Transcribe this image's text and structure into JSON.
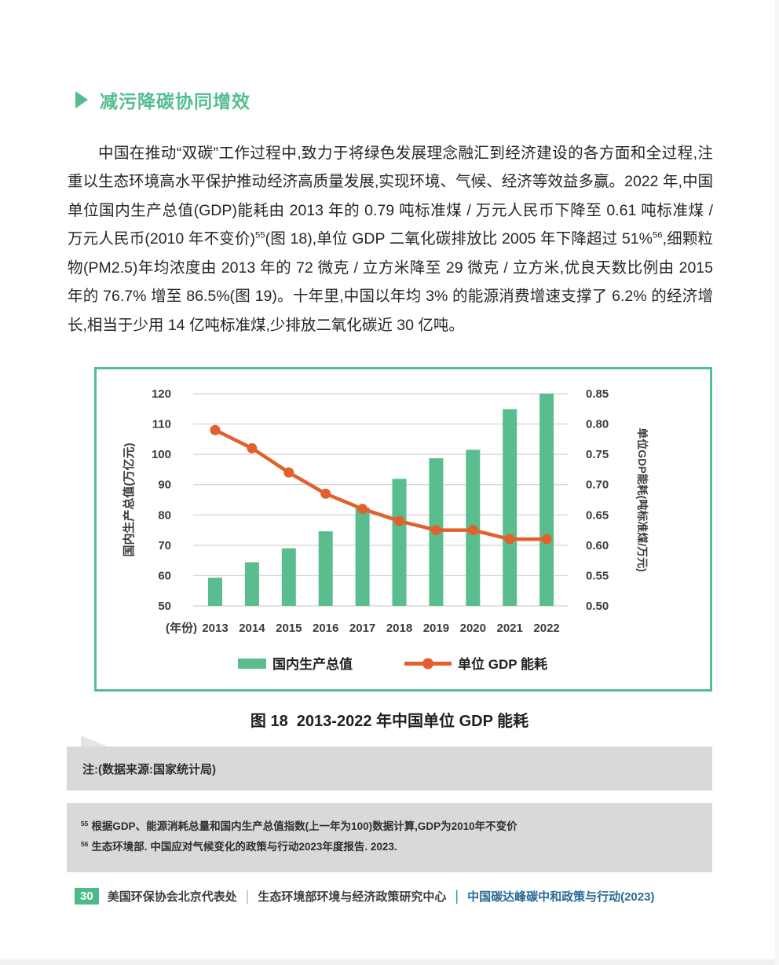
{
  "colors": {
    "accent_green": "#52be8e",
    "bar_green": "#5abd8d",
    "line_orange": "#e2602c",
    "gray_panel": "#d9d9d9",
    "footer_page_green": "#4dba87",
    "footer_teal": "#2a6a94"
  },
  "heading": {
    "text": "减污降碳协同增效"
  },
  "paragraph": {
    "segments": [
      {
        "text": "中国在推动“双碳”工作过程中,致力于将绿色发展理念融汇到经济建设的各方面和全过程,注重以生态环境高水平保护推动经济高质量发展,实现环境、气候、经济等效益多赢。2022 年,中国单位国内生产总值(GDP)能耗由 2013 年的 0.79 吨标准煤 / 万元人民币下降至 0.61 吨标准煤 / 万元人民币(2010 年不变价)"
      },
      {
        "sup": "55"
      },
      {
        "text": "(图 18),单位 GDP 二氧化碳排放比 2005 年下降超过 51%"
      },
      {
        "sup": "56"
      },
      {
        "text": ",细颗粒物(PM2.5)年均浓度由 2013 年的 72 微克 / 立方米降至 29 微克 / 立方米,优良天数比例由 2015 年的 76.7% 增至 86.5%(图 19)。十年里,中国以年均 3% 的能源消费增速支撑了 6.2% 的经济增长,相当于少用 14 亿吨标准煤,少排放二氧化碳近 30 亿吨。"
      }
    ]
  },
  "figure": {
    "caption": "图 18  2013-2022 年中国单位 GDP 能耗",
    "note": "注:(数据来源:国家统计局)"
  },
  "chart_data": {
    "type": "bar+line",
    "categories": [
      "2013",
      "2014",
      "2015",
      "2016",
      "2017",
      "2018",
      "2019",
      "2020",
      "2021",
      "2022"
    ],
    "x_axis_prefix": "(年份)",
    "series": [
      {
        "name": "国内生产总值",
        "type": "bar",
        "axis": "left",
        "color": "#5abd8d",
        "values": [
          59.3,
          64.4,
          69.0,
          74.6,
          82.5,
          91.9,
          98.7,
          101.5,
          114.9,
          120.0
        ]
      },
      {
        "name": "单位 GDP 能耗",
        "type": "line",
        "axis": "right",
        "color": "#e2602c",
        "values": [
          0.79,
          0.76,
          0.72,
          0.685,
          0.66,
          0.64,
          0.625,
          0.625,
          0.61,
          0.61
        ]
      }
    ],
    "left_axis": {
      "label": "国内生产总值(万亿元)",
      "min": 50,
      "max": 120,
      "step": 10
    },
    "right_axis": {
      "label": "单位GDP能耗(吨标准煤/万元)",
      "min": 0.5,
      "max": 0.85,
      "step": 0.05
    },
    "grid": true,
    "legend_position": "bottom"
  },
  "footnotes": [
    {
      "marker": "55",
      "text": "根据GDP、能源消耗总量和国内生产总值指数(上一年为100)数据计算,GDP为2010年不变价"
    },
    {
      "marker": "56",
      "text": "生态环境部. 中国应对气候变化的政策与行动2023年度报告. 2023."
    }
  ],
  "footer": {
    "page_number": "30",
    "items": [
      "美国环保协会北京代表处",
      "生态环境部环境与经济政策研究中心",
      "中国碳达峰碳中和政策与行动(2023)"
    ]
  }
}
